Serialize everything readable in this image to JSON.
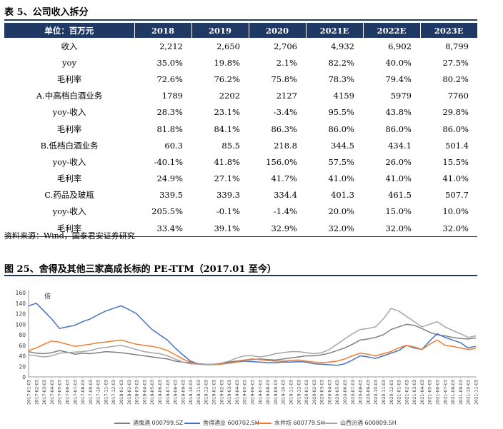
{
  "table": {
    "title": "表 5、公司收入拆分",
    "unit_label": "单位：百万元",
    "columns": [
      "2018",
      "2019",
      "2020",
      "2021E",
      "2022E",
      "2023E"
    ],
    "rows": [
      {
        "label": "收入",
        "values": [
          "2,212",
          "2,650",
          "2,706",
          "4,932",
          "6,902",
          "8,799"
        ]
      },
      {
        "label": "yoy",
        "values": [
          "35.0%",
          "19.8%",
          "2.1%",
          "82.2%",
          "40.0%",
          "27.5%"
        ]
      },
      {
        "label": "毛利率",
        "values": [
          "72.6%",
          "76.2%",
          "75.8%",
          "78.3%",
          "79.4%",
          "80.2%"
        ]
      },
      {
        "label": "A.中高档白酒业务",
        "values": [
          "1789",
          "2202",
          "2127",
          "4159",
          "5979",
          "7760"
        ]
      },
      {
        "label": "yoy-收入",
        "values": [
          "28.3%",
          "23.1%",
          "-3.4%",
          "95.5%",
          "43.8%",
          "29.8%"
        ]
      },
      {
        "label": "毛利率",
        "values": [
          "81.8%",
          "84.1%",
          "86.3%",
          "86.0%",
          "86.0%",
          "86.0%"
        ]
      },
      {
        "label": "B.低档白酒业务",
        "values": [
          "60.3",
          "85.5",
          "218.8",
          "344.5",
          "434.1",
          "501.4"
        ]
      },
      {
        "label": "yoy-收入",
        "values": [
          "-40.1%",
          "41.8%",
          "156.0%",
          "57.5%",
          "26.0%",
          "15.5%"
        ]
      },
      {
        "label": "毛利率",
        "values": [
          "24.9%",
          "27.1%",
          "41.7%",
          "41.0%",
          "41.0%",
          "41.0%"
        ]
      },
      {
        "label": "C.药品及玻瓶",
        "values": [
          "339.5",
          "339.3",
          "334.4",
          "401.3",
          "461.5",
          "507.7"
        ]
      },
      {
        "label": "yoy-收入",
        "values": [
          "205.5%",
          "-0.1%",
          "-1.4%",
          "20.0%",
          "15.0%",
          "10.0%"
        ]
      },
      {
        "label": "毛利率",
        "values": [
          "33.4%",
          "39.1%",
          "32.9%",
          "32.0%",
          "32.0%",
          "32.0%"
        ]
      }
    ],
    "source": "资料来源：Wind，国泰君安证券研究"
  },
  "chart_title": "图 25、舍得及其他三家高成长标的 PE-TTM（2017.01 至今）",
  "chart_data": {
    "type": "line",
    "title": "",
    "xlabel": "",
    "ylabel": "",
    "annotation": "倍",
    "ylim": [
      0,
      160
    ],
    "yticks": [
      0,
      20,
      40,
      60,
      80,
      100,
      120,
      140,
      160
    ],
    "x": [
      "2017-01-03",
      "2017-02-03",
      "2017-03-03",
      "2017-04-03",
      "2017-05-03",
      "2017-06-03",
      "2017-07-03",
      "2017-08-03",
      "2017-09-03",
      "2017-10-03",
      "2017-11-03",
      "2017-12-03",
      "2018-01-03",
      "2018-02-03",
      "2018-03-03",
      "2018-04-03",
      "2018-05-03",
      "2018-06-03",
      "2018-07-03",
      "2018-08-03",
      "2018-09-03",
      "2018-10-03",
      "2018-11-03",
      "2018-12-03",
      "2019-01-03",
      "2019-02-03",
      "2019-03-03",
      "2019-04-03",
      "2019-05-03",
      "2019-06-03",
      "2019-07-03",
      "2019-08-03",
      "2019-09-03",
      "2019-10-03",
      "2019-11-03",
      "2019-12-03",
      "2020-01-03",
      "2020-02-03",
      "2020-03-03",
      "2020-04-03",
      "2020-05-03",
      "2020-06-03",
      "2020-07-03",
      "2020-08-03",
      "2020-09-03",
      "2020-10-03",
      "2020-11-03",
      "2020-12-03",
      "2021-01-03",
      "2021-02-03",
      "2021-03-03",
      "2021-04-03",
      "2021-05-03",
      "2021-06-03",
      "2021-07-03",
      "2021-08-03",
      "2021-09-03",
      "2021-10-03",
      "2021-11-03"
    ],
    "series": [
      {
        "name": "酒鬼酒 000799.SZ",
        "color": "#7f7f7f",
        "values": [
          48,
          45,
          44,
          46,
          50,
          47,
          43,
          45,
          44,
          46,
          48,
          47,
          46,
          44,
          42,
          40,
          38,
          36,
          34,
          30,
          28,
          27,
          25,
          24,
          24,
          26,
          28,
          30,
          32,
          33,
          34,
          33,
          32,
          34,
          36,
          38,
          40,
          40,
          42,
          45,
          50,
          55,
          62,
          70,
          72,
          75,
          80,
          90,
          95,
          100,
          98,
          92,
          85,
          80,
          78,
          75,
          73,
          72,
          74
        ]
      },
      {
        "name": "舍得酒业 600702.SH",
        "color": "#4472c4",
        "values": [
          135,
          140,
          125,
          110,
          92,
          95,
          98,
          105,
          110,
          118,
          125,
          130,
          135,
          128,
          120,
          105,
          90,
          80,
          70,
          55,
          42,
          30,
          25,
          24,
          24,
          25,
          27,
          28,
          30,
          29,
          28,
          27,
          27,
          28,
          28,
          29,
          28,
          25,
          24,
          23,
          22,
          25,
          32,
          40,
          38,
          35,
          40,
          45,
          50,
          60,
          55,
          52,
          68,
          82,
          75,
          70,
          65,
          55,
          58
        ]
      },
      {
        "name": "水井坊 600779.SH",
        "color": "#ed7d31",
        "values": [
          50,
          55,
          62,
          68,
          66,
          62,
          58,
          60,
          62,
          65,
          66,
          68,
          70,
          66,
          62,
          60,
          58,
          55,
          50,
          42,
          34,
          28,
          24,
          23,
          23,
          24,
          26,
          28,
          32,
          34,
          33,
          31,
          30,
          30,
          31,
          32,
          30,
          28,
          27,
          28,
          30,
          34,
          40,
          45,
          43,
          40,
          44,
          48,
          55,
          60,
          57,
          52,
          62,
          70,
          60,
          58,
          55,
          52,
          54
        ]
      },
      {
        "name": "山西汾酒 600809.SH",
        "color": "#a5a5a5",
        "values": [
          42,
          40,
          38,
          40,
          45,
          46,
          47,
          48,
          50,
          54,
          56,
          58,
          60,
          56,
          52,
          48,
          46,
          44,
          40,
          34,
          28,
          25,
          24,
          24,
          24,
          26,
          30,
          36,
          40,
          40,
          38,
          40,
          44,
          46,
          48,
          48,
          46,
          44,
          46,
          52,
          62,
          72,
          82,
          90,
          92,
          95,
          110,
          130,
          125,
          115,
          105,
          95,
          100,
          105,
          95,
          88,
          82,
          75,
          78
        ]
      }
    ]
  }
}
